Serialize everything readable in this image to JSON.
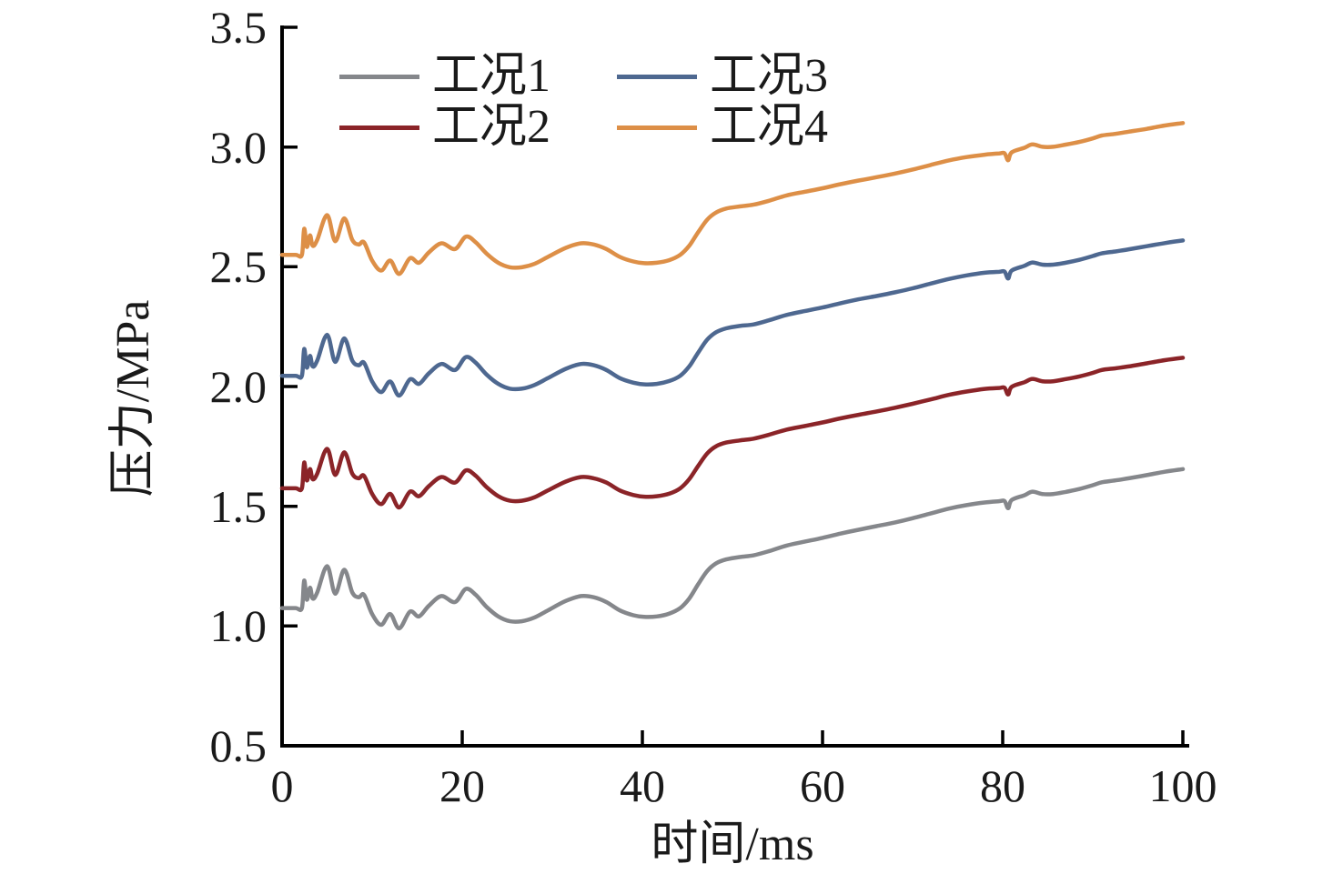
{
  "figure": {
    "background": "#ffffff",
    "axis_color": "#000000",
    "text_color": "#1a1a1a"
  },
  "chart_data": {
    "type": "line",
    "title": "",
    "xlabel": "时间/ms",
    "ylabel": "压力/MPa",
    "xlim": [
      0,
      100
    ],
    "ylim": [
      0.5,
      3.5
    ],
    "grid": false,
    "legend_position": "top-left-inside",
    "x_ticks": [
      0,
      20,
      40,
      60,
      80,
      100
    ],
    "x_tick_labels": [
      "0",
      "20",
      "40",
      "60",
      "80",
      "100"
    ],
    "y_ticks": [
      3.5,
      3.0,
      2.5,
      2.0,
      1.5,
      1.0,
      0.5
    ],
    "y_tick_labels": [
      "3.5",
      "3.0",
      "2.5",
      "2.0",
      "1.5",
      "1.0",
      "0.5"
    ],
    "x": [
      0,
      1.5,
      2.2,
      2.45,
      2.75,
      3.1,
      3.4,
      3.9,
      5.0,
      5.9,
      6.9,
      7.8,
      8.5,
      9.1,
      10.0,
      11.0,
      12.0,
      13.0,
      14.2,
      15.2,
      16.3,
      17.7,
      19.2,
      20.4,
      21.5,
      22.7,
      24.0,
      25.3,
      26.6,
      28.0,
      29.5,
      31.5,
      33.2,
      34.6,
      36.0,
      37.5,
      39.0,
      40.2,
      41.6,
      43.0,
      44.2,
      45.2,
      46.2,
      47.2,
      48.2,
      49.3,
      50.8,
      52.3,
      54.0,
      56.0,
      58.0,
      60.0,
      62.0,
      64.0,
      66.0,
      68.0,
      70.0,
      72.0,
      74.0,
      76.0,
      78.0,
      79.6,
      80.2,
      80.6,
      81.0,
      82.4,
      83.3,
      84.4,
      85.6,
      87.0,
      88.5,
      90.0,
      91.0,
      92.5,
      94.0,
      96.0,
      98.0,
      100.0
    ],
    "series": [
      {
        "name": "工况1",
        "color": "#85878B",
        "values": [
          1.075,
          1.075,
          1.075,
          1.19,
          1.11,
          1.16,
          1.115,
          1.14,
          1.25,
          1.135,
          1.235,
          1.14,
          1.12,
          1.13,
          1.05,
          1.005,
          1.05,
          0.99,
          1.06,
          1.04,
          1.085,
          1.125,
          1.1,
          1.155,
          1.13,
          1.08,
          1.04,
          1.02,
          1.02,
          1.035,
          1.065,
          1.105,
          1.125,
          1.12,
          1.1,
          1.065,
          1.045,
          1.038,
          1.04,
          1.052,
          1.075,
          1.115,
          1.175,
          1.23,
          1.262,
          1.278,
          1.288,
          1.295,
          1.312,
          1.336,
          1.352,
          1.368,
          1.386,
          1.402,
          1.417,
          1.432,
          1.45,
          1.47,
          1.49,
          1.505,
          1.516,
          1.521,
          1.522,
          1.492,
          1.526,
          1.546,
          1.561,
          1.551,
          1.551,
          1.56,
          1.572,
          1.588,
          1.6,
          1.608,
          1.617,
          1.63,
          1.644,
          1.655
        ]
      },
      {
        "name": "工况2",
        "color": "#8B2428",
        "values": [
          1.575,
          1.575,
          1.575,
          1.683,
          1.608,
          1.655,
          1.613,
          1.636,
          1.74,
          1.631,
          1.725,
          1.636,
          1.617,
          1.627,
          1.552,
          1.509,
          1.552,
          1.495,
          1.561,
          1.542,
          1.584,
          1.622,
          1.599,
          1.65,
          1.627,
          1.58,
          1.542,
          1.523,
          1.523,
          1.537,
          1.566,
          1.603,
          1.622,
          1.617,
          1.599,
          1.566,
          1.547,
          1.54,
          1.542,
          1.553,
          1.575,
          1.613,
          1.669,
          1.721,
          1.751,
          1.766,
          1.775,
          1.782,
          1.798,
          1.82,
          1.835,
          1.85,
          1.867,
          1.882,
          1.896,
          1.911,
          1.928,
          1.946,
          1.965,
          1.979,
          1.99,
          1.994,
          1.995,
          1.967,
          1.999,
          2.018,
          2.032,
          2.022,
          2.022,
          2.031,
          2.042,
          2.057,
          2.069,
          2.076,
          2.084,
          2.097,
          2.11,
          2.12
        ]
      },
      {
        "name": "工况3",
        "color": "#4E6890",
        "values": [
          2.045,
          2.045,
          2.045,
          2.157,
          2.079,
          2.128,
          2.084,
          2.108,
          2.216,
          2.103,
          2.201,
          2.108,
          2.089,
          2.099,
          2.021,
          1.977,
          2.021,
          1.962,
          2.03,
          2.011,
          2.055,
          2.094,
          2.069,
          2.123,
          2.099,
          2.05,
          2.011,
          1.991,
          1.991,
          2.006,
          2.035,
          2.074,
          2.094,
          2.089,
          2.069,
          2.035,
          2.016,
          2.009,
          2.011,
          2.023,
          2.045,
          2.084,
          2.142,
          2.196,
          2.227,
          2.243,
          2.253,
          2.259,
          2.276,
          2.299,
          2.315,
          2.33,
          2.348,
          2.364,
          2.378,
          2.393,
          2.41,
          2.43,
          2.449,
          2.464,
          2.475,
          2.479,
          2.48,
          2.451,
          2.484,
          2.504,
          2.518,
          2.509,
          2.509,
          2.517,
          2.529,
          2.545,
          2.556,
          2.564,
          2.573,
          2.586,
          2.599,
          2.61
        ]
      },
      {
        "name": "工况4",
        "color": "#DD8F47",
        "values": [
          2.55,
          2.55,
          2.55,
          2.659,
          2.583,
          2.631,
          2.588,
          2.612,
          2.716,
          2.607,
          2.702,
          2.612,
          2.593,
          2.602,
          2.526,
          2.484,
          2.526,
          2.47,
          2.536,
          2.517,
          2.56,
          2.598,
          2.574,
          2.626,
          2.602,
          2.555,
          2.517,
          2.498,
          2.498,
          2.512,
          2.541,
          2.579,
          2.598,
          2.593,
          2.574,
          2.541,
          2.522,
          2.515,
          2.517,
          2.528,
          2.55,
          2.588,
          2.645,
          2.697,
          2.727,
          2.743,
          2.752,
          2.759,
          2.775,
          2.798,
          2.813,
          2.828,
          2.845,
          2.86,
          2.874,
          2.889,
          2.906,
          2.925,
          2.944,
          2.958,
          2.968,
          2.973,
          2.974,
          2.945,
          2.978,
          2.997,
          3.011,
          3.001,
          3.001,
          3.01,
          3.021,
          3.036,
          3.048,
          3.055,
          3.064,
          3.076,
          3.09,
          3.1
        ]
      }
    ]
  }
}
